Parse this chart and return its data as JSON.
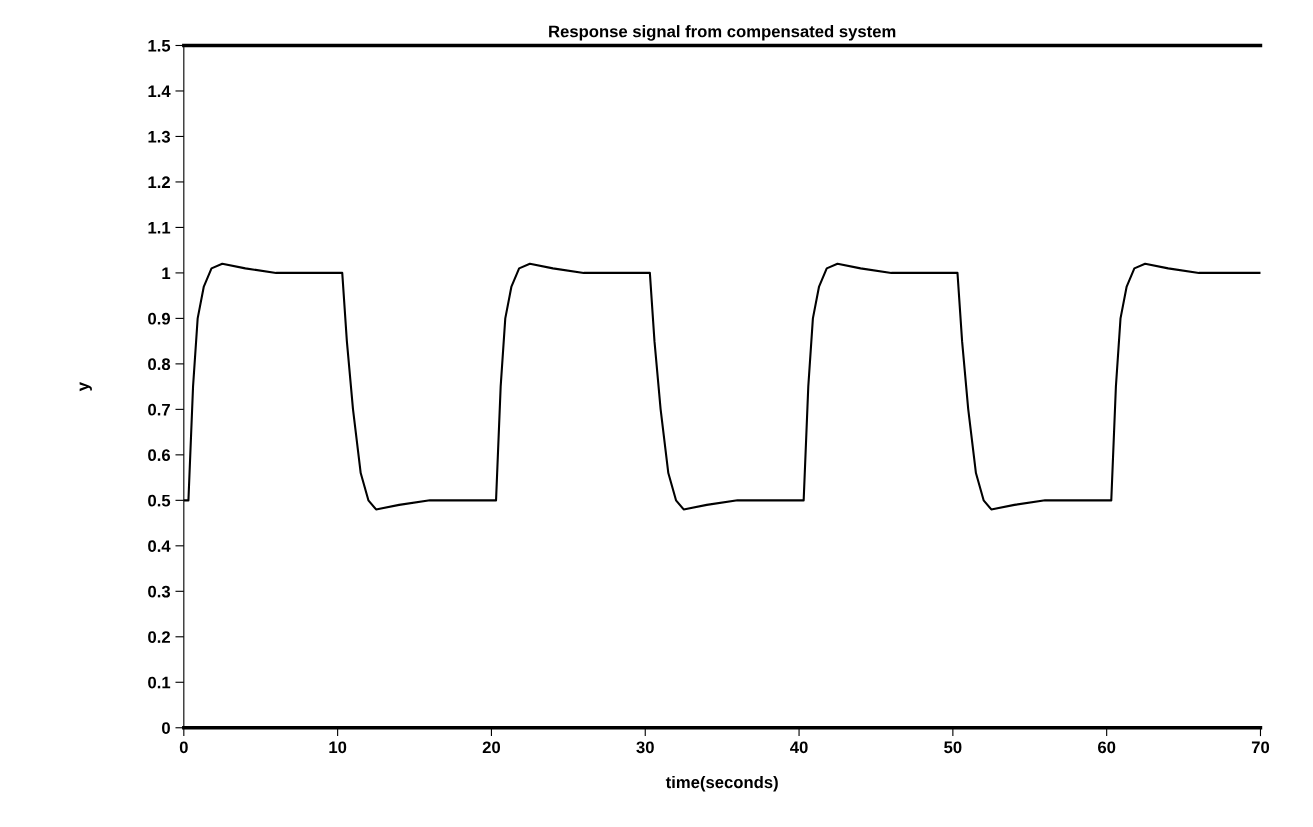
{
  "chart_data": {
    "type": "line",
    "title": "Response signal from compensated system",
    "xlabel": "time(seconds)",
    "ylabel": "y",
    "x": [
      0,
      0.3,
      0.6,
      0.9,
      1.3,
      1.8,
      2.5,
      4,
      6,
      10.3,
      10.6,
      11,
      11.5,
      12,
      12.5,
      14,
      16,
      20.3,
      20.6,
      20.9,
      21.3,
      21.8,
      22.5,
      24,
      26,
      30.3,
      30.6,
      31,
      31.5,
      32,
      32.5,
      34,
      36,
      40.3,
      40.6,
      40.9,
      41.3,
      41.8,
      42.5,
      44,
      46,
      50.3,
      50.6,
      51,
      51.5,
      52,
      52.5,
      54,
      56,
      60.3,
      60.6,
      60.9,
      61.3,
      61.8,
      62.5,
      64,
      66,
      70
    ],
    "series": [
      {
        "color": "#000000",
        "values": [
          0.5,
          0.5,
          0.75,
          0.9,
          0.97,
          1.01,
          1.02,
          1.01,
          1,
          1,
          0.85,
          0.7,
          0.56,
          0.5,
          0.48,
          0.49,
          0.5,
          0.5,
          0.75,
          0.9,
          0.97,
          1.01,
          1.02,
          1.01,
          1,
          1,
          0.85,
          0.7,
          0.56,
          0.5,
          0.48,
          0.49,
          0.5,
          0.5,
          0.75,
          0.9,
          0.97,
          1.01,
          1.02,
          1.01,
          1,
          1,
          0.85,
          0.7,
          0.56,
          0.5,
          0.48,
          0.49,
          0.5,
          0.5,
          0.75,
          0.9,
          0.97,
          1.01,
          1.02,
          1.01,
          1,
          1
        ]
      }
    ],
    "xlim": [
      0,
      70
    ],
    "xticks": [
      0,
      10,
      20,
      30,
      40,
      50,
      60,
      70
    ],
    "ylim": [
      0,
      1.5
    ],
    "yticks": [
      0,
      0.1,
      0.2,
      0.3,
      0.4,
      0.5,
      0.6,
      0.7,
      0.8,
      0.9,
      1,
      1.1,
      1.2,
      1.3,
      1.4,
      1.5
    ],
    "grid": false,
    "legend": false,
    "marker": "none",
    "line_style": "solid"
  }
}
